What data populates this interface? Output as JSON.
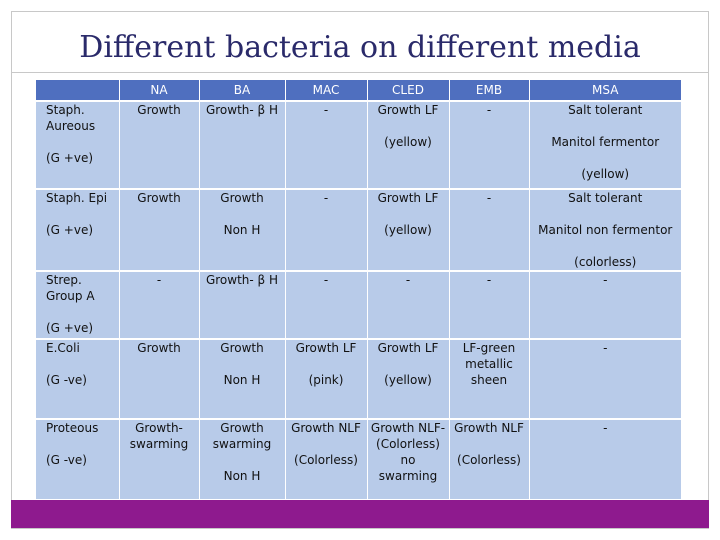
{
  "slide": {
    "title": "Different bacteria on different media"
  },
  "table": {
    "headers": [
      "",
      "NA",
      "BA",
      "MAC",
      "CLED",
      "EMB",
      "MSA"
    ],
    "rows": [
      {
        "organism": "Staph.\nAureous\n\n(G +ve)",
        "cells": [
          "Growth",
          "Growth- β H",
          "-",
          "Growth LF\n\n(yellow)",
          "-",
          "Salt tolerant\n\nManitol fermentor\n\n(yellow)"
        ]
      },
      {
        "organism": "Staph. Epi\n\n(G +ve)",
        "cells": [
          "Growth",
          "Growth\n\nNon H",
          "-",
          "Growth LF\n\n(yellow)",
          "-",
          "Salt tolerant\n\nManitol non fermentor\n\n(colorless)"
        ]
      },
      {
        "organism": "Strep.\nGroup A\n\n(G +ve)",
        "cells": [
          "-",
          "Growth- β H",
          "-",
          "-",
          "-",
          "-"
        ]
      },
      {
        "organism": "E.Coli\n\n(G -ve)",
        "cells": [
          "Growth",
          "Growth\n\nNon H",
          "Growth LF\n\n(pink)",
          "Growth LF\n\n(yellow)",
          "LF-green\nmetallic\nsheen",
          "-"
        ]
      },
      {
        "organism": "Proteous\n\n(G -ve)",
        "cells": [
          "Growth-\nswarming",
          "Growth\nswarming\n\nNon H",
          "Growth NLF\n\n(Colorless)",
          "Growth NLF-\n(Colorless)\nno\nswarming",
          "Growth NLF\n\n(Colorless)",
          "-"
        ]
      }
    ]
  },
  "colors": {
    "header_bg": "#4f6fbf",
    "cell_bg": "#b8cbe9",
    "footer_bar": "#8e1a8e",
    "title": "#2a2a6a"
  }
}
